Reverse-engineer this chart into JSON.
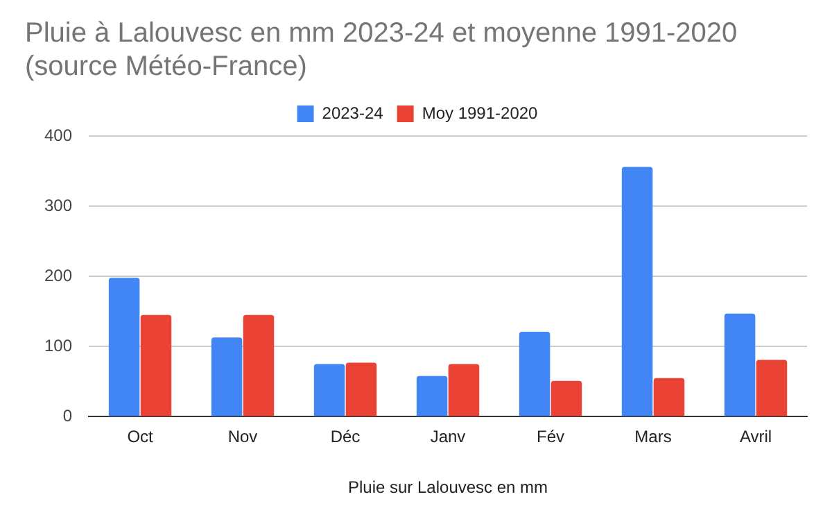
{
  "chart_data": {
    "type": "bar",
    "title": "Pluie à Lalouvesc en mm 2023-24 et moyenne 1991-2020 (source Météo-France)",
    "xlabel": "Pluie sur Lalouvesc en mm",
    "categories": [
      "Oct",
      "Nov",
      "Déc",
      "Janv",
      "Fév",
      "Mars",
      "Avril"
    ],
    "series": [
      {
        "name": "2023-24",
        "color": "#4285f4",
        "values": [
          198,
          113,
          75,
          58,
          121,
          356,
          147
        ]
      },
      {
        "name": "Moy 1991-2020",
        "color": "#ea4335",
        "values": [
          145,
          145,
          77,
          75,
          51,
          55,
          81
        ]
      }
    ],
    "ylim": [
      0,
      400
    ],
    "yticks": [
      0,
      100,
      200,
      300,
      400
    ],
    "grid": "y",
    "legend": "top"
  }
}
